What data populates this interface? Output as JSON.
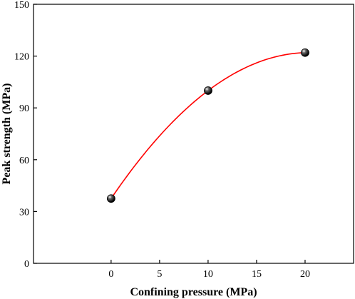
{
  "chart_data": {
    "type": "scatter",
    "title": "",
    "xlabel": "Confining pressure (MPa)",
    "ylabel": "Peak strength (MPa)",
    "xlim": [
      -8,
      25
    ],
    "ylim": [
      0,
      150
    ],
    "xticks": [
      0,
      5,
      10,
      15,
      20
    ],
    "yticks": [
      0,
      30,
      60,
      90,
      120,
      150
    ],
    "grid": false,
    "legend": "none",
    "series": [
      {
        "points": [
          {
            "x": 0,
            "y": 37.5
          },
          {
            "x": 10,
            "y": 100
          },
          {
            "x": 20,
            "y": 122
          }
        ],
        "marker_color": "#000000",
        "fit_color": "#ff0000"
      }
    ]
  }
}
